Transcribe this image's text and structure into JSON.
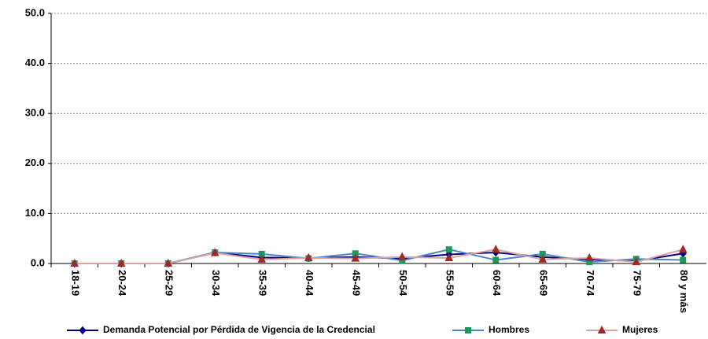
{
  "chart_data": {
    "type": "line",
    "categories": [
      "18-19",
      "20-24",
      "25-29",
      "30-34",
      "35-39",
      "40-44",
      "45-49",
      "50-54",
      "55-59",
      "60-64",
      "65-69",
      "70-74",
      "75-79",
      "80 y más"
    ],
    "series": [
      {
        "name": "Demanda Potencial por Pérdida de Vigencia de la Credencial",
        "color": "#000080",
        "marker_color": "#000080",
        "marker": "diamond",
        "values": [
          0,
          0,
          0,
          2.2,
          1.2,
          1.1,
          1.3,
          1.0,
          1.8,
          2.2,
          1.3,
          0.8,
          0.5,
          2.0
        ]
      },
      {
        "name": "Hombres",
        "color": "#4a86c8",
        "marker_color": "#1a9a5a",
        "marker": "square",
        "values": [
          0,
          0,
          0,
          2.2,
          1.9,
          1.0,
          2.0,
          0.6,
          2.8,
          0.7,
          1.9,
          0.3,
          0.9,
          0.7
        ]
      },
      {
        "name": "Mujeres",
        "color": "#e0a0a0",
        "marker_color": "#a0282a",
        "marker": "triangle",
        "values": [
          0,
          0,
          0,
          2.1,
          0.8,
          1.1,
          1.0,
          1.3,
          1.1,
          2.8,
          0.8,
          1.1,
          0.3,
          2.8
        ]
      }
    ],
    "ylim": [
      0,
      50
    ],
    "yticks": [
      {
        "value": 0,
        "label": "0.0"
      },
      {
        "value": 10,
        "label": "10.0"
      },
      {
        "value": 20,
        "label": "20.0"
      },
      {
        "value": 30,
        "label": "30.0"
      },
      {
        "value": 40,
        "label": "40.0"
      },
      {
        "value": 50,
        "label": "50.0"
      }
    ],
    "grid": true
  }
}
